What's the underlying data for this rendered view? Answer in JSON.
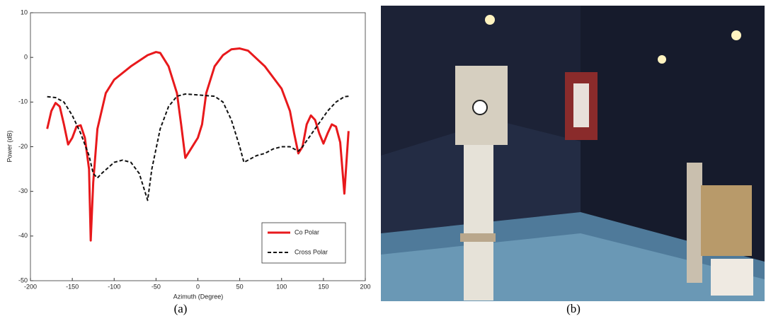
{
  "chart_data": {
    "type": "line",
    "xlabel": "Azimuth (Degree)",
    "ylabel": "Power (dB)",
    "xlim": [
      -200,
      200
    ],
    "ylim": [
      -50,
      10
    ],
    "xticks": [
      -200,
      -150,
      -100,
      -50,
      0,
      50,
      100,
      150,
      200
    ],
    "yticks": [
      10,
      0,
      -10,
      -20,
      -30,
      -40,
      -50
    ],
    "legend": "lower right",
    "series": [
      {
        "name": "Co Polar",
        "color": "#e8191c",
        "dash": false,
        "x": [
          -180,
          -175,
          -170,
          -165,
          -160,
          -155,
          -150,
          -145,
          -140,
          -135,
          -130,
          -128,
          -125,
          -120,
          -110,
          -100,
          -80,
          -60,
          -50,
          -45,
          -35,
          -25,
          -20,
          -15,
          -10,
          -5,
          0,
          5,
          10,
          20,
          30,
          40,
          50,
          60,
          80,
          100,
          110,
          115,
          120,
          125,
          130,
          135,
          140,
          145,
          150,
          155,
          160,
          165,
          170,
          175,
          178,
          180
        ],
        "values": [
          -16,
          -12,
          -10.2,
          -11,
          -15,
          -19.5,
          -18,
          -15.5,
          -15.2,
          -18,
          -25,
          -41,
          -28,
          -16,
          -8,
          -5,
          -2,
          0.5,
          1.2,
          1,
          -2,
          -8,
          -15,
          -22.5,
          -21,
          -19.5,
          -18,
          -15,
          -8,
          -2,
          0.5,
          1.8,
          2,
          1.5,
          -2,
          -7,
          -12,
          -17,
          -21.5,
          -20,
          -15,
          -13,
          -14,
          -17,
          -19.3,
          -17,
          -15,
          -15.5,
          -19,
          -30.5,
          -22,
          -16.5
        ]
      },
      {
        "name": "Cross Polar",
        "color": "#111111",
        "dash": true,
        "x": [
          -180,
          -170,
          -160,
          -150,
          -140,
          -130,
          -125,
          -120,
          -115,
          -100,
          -90,
          -80,
          -70,
          -60,
          -55,
          -45,
          -35,
          -25,
          -15,
          0,
          20,
          30,
          40,
          50,
          55,
          60,
          70,
          80,
          90,
          100,
          110,
          120,
          125,
          140,
          155,
          165,
          175,
          180
        ],
        "values": [
          -8.8,
          -9,
          -10,
          -13,
          -17,
          -22,
          -26,
          -27,
          -26,
          -23.5,
          -23,
          -23.5,
          -26,
          -32,
          -25,
          -16,
          -11,
          -8.7,
          -8.2,
          -8.4,
          -8.7,
          -10,
          -14,
          -20,
          -23.5,
          -23,
          -22,
          -21.5,
          -20.5,
          -20,
          -20,
          -21,
          -20,
          -16,
          -12,
          -10,
          -8.8,
          -8.7
        ]
      }
    ]
  },
  "captions": [
    "(a)",
    "(b)"
  ]
}
